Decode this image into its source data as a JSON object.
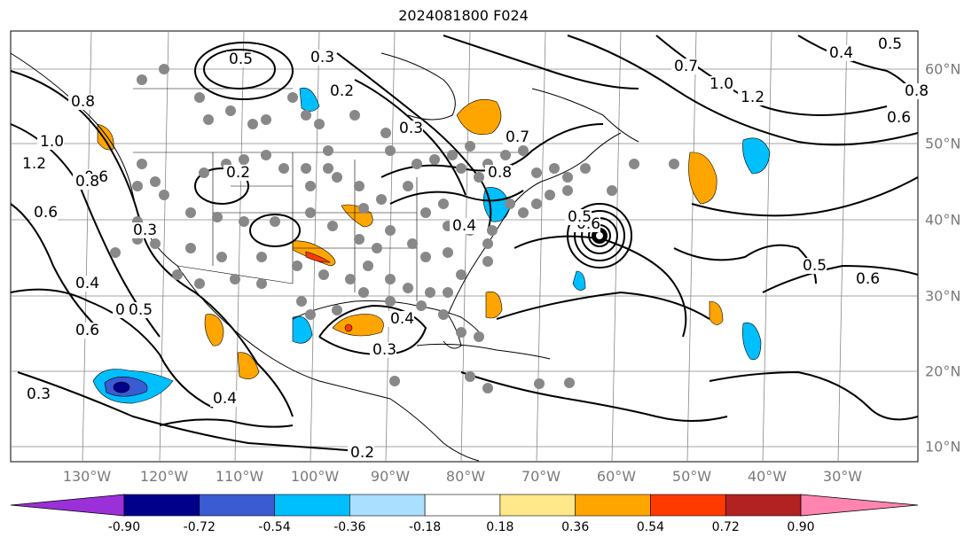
{
  "title": "2024081800 F024",
  "lon_ticks": [
    "130°W",
    "120°W",
    "110°W",
    "100°W",
    "90°W",
    "80°W",
    "70°W",
    "60°W",
    "50°W",
    "40°W",
    "30°W"
  ],
  "lat_ticks": [
    "60°N",
    "50°N",
    "40°N",
    "30°N",
    "20°N",
    "10°N"
  ],
  "colorbar": {
    "levels": [
      "-0.90",
      "-0.72",
      "-0.54",
      "-0.36",
      "-0.18",
      "0.18",
      "0.36",
      "0.54",
      "0.72",
      "0.90"
    ],
    "colors": [
      "#9b30d9",
      "#00008b",
      "#3a5bd1",
      "#00bfff",
      "#aadfff",
      "#ffffff",
      "#ffe88a",
      "#ffa500",
      "#ff3a00",
      "#b22222",
      "#ff85b0"
    ]
  },
  "contour_labels": [
    "0.5",
    "0.3",
    "0.2",
    "0.3",
    "0.8",
    "0.6",
    "0.7",
    "1.0",
    "1.2",
    "0.4",
    "0.5",
    "0.8",
    "0.6",
    "1.2",
    "1.0",
    "0.8",
    "0.6",
    "0.3",
    "0.5",
    "0.4",
    "0.2",
    "0.7",
    "0.8",
    "0.6",
    "0.5",
    "0.4",
    "0.5",
    "0.6",
    "0.4",
    "0.3",
    "0.3",
    "0.4",
    "0.2",
    "0.6",
    "0.5"
  ]
}
